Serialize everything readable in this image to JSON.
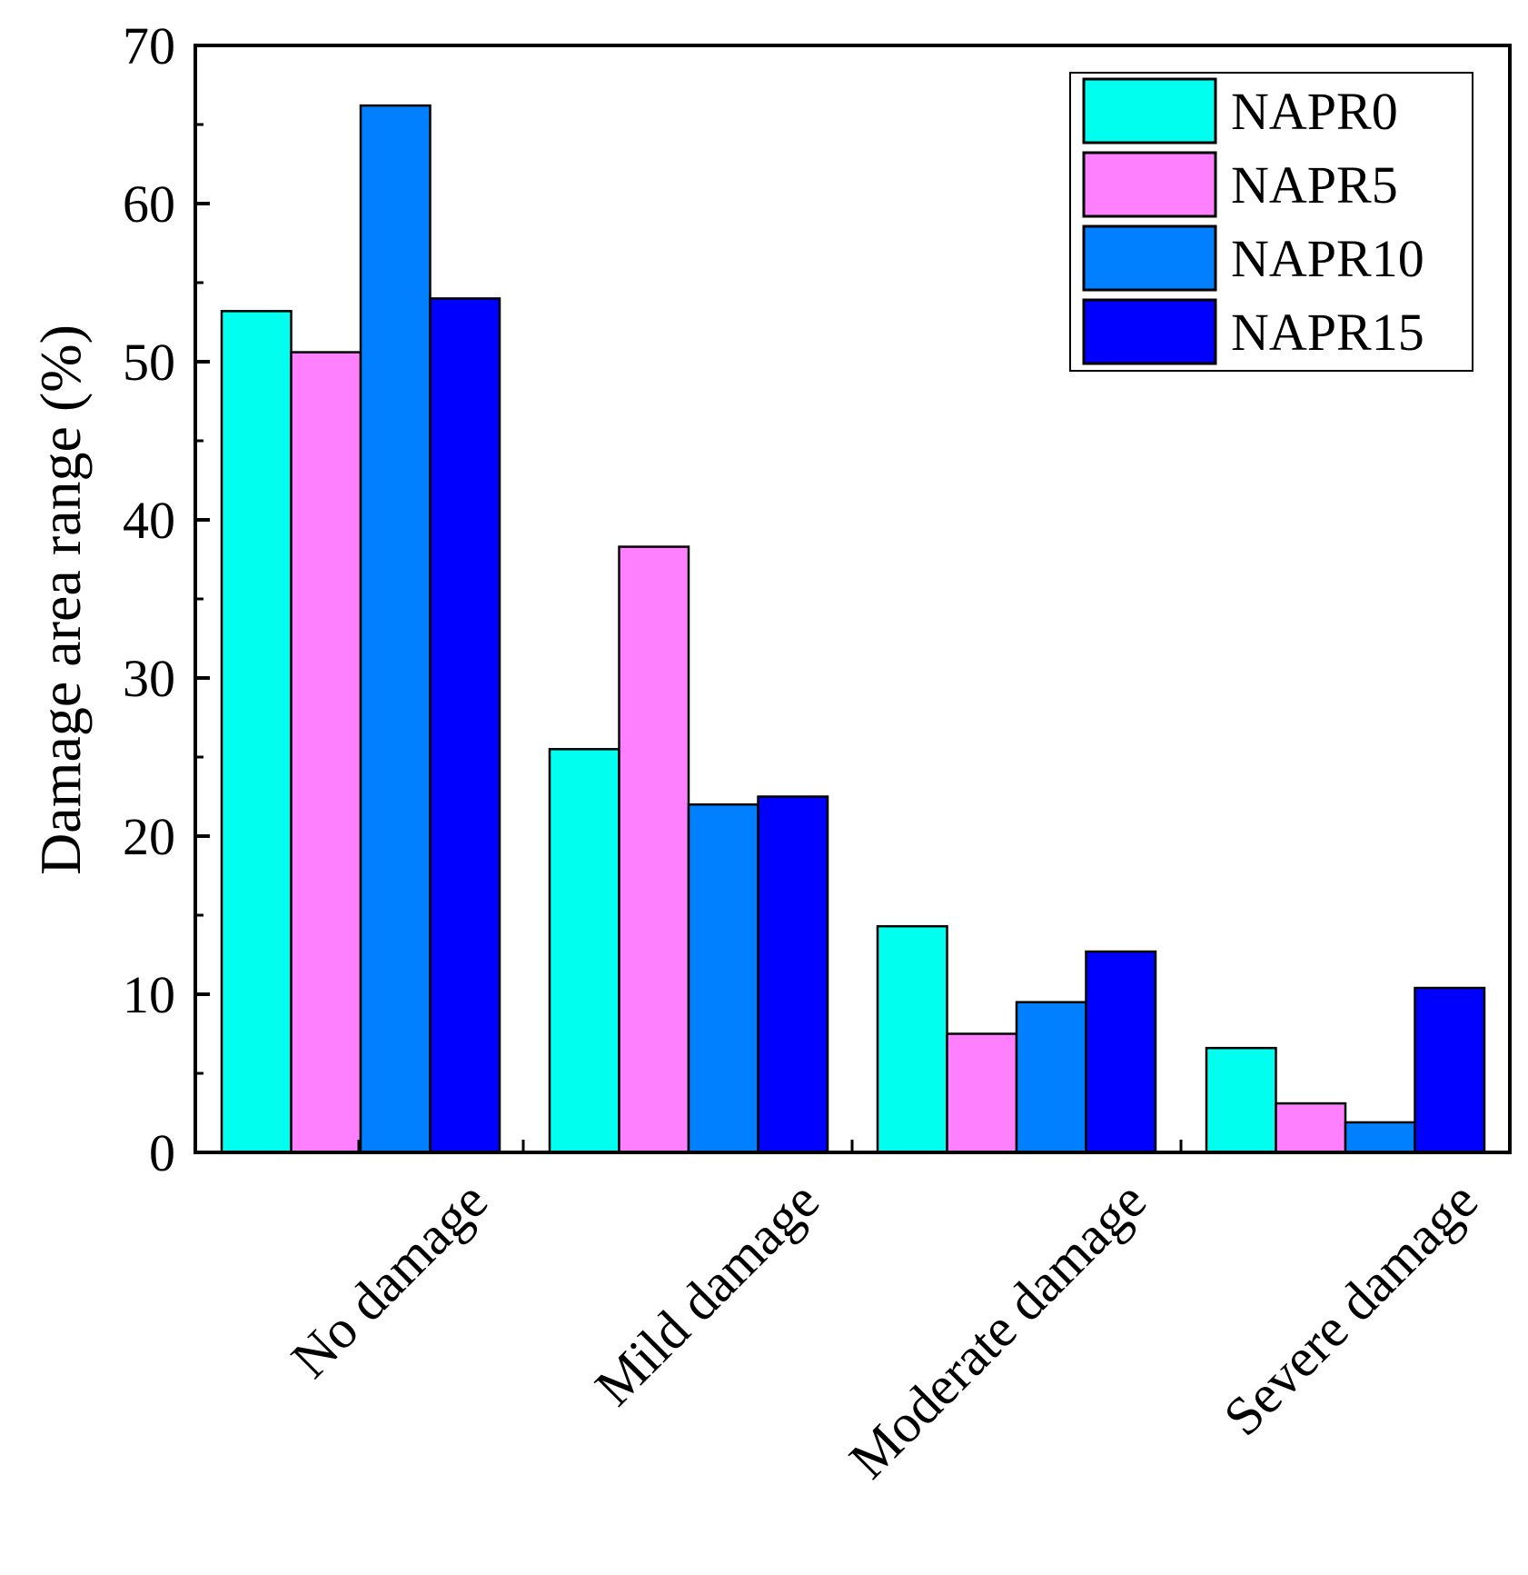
{
  "chart_data": {
    "type": "bar",
    "title": "",
    "xlabel": "",
    "ylabel": "Damage area range (%)",
    "ylim": [
      0,
      70
    ],
    "yticks": [
      0,
      10,
      20,
      30,
      40,
      50,
      60,
      70
    ],
    "yticks_minor_step": 5,
    "categories": [
      "No damage",
      "Mild damage",
      "Moderate damage",
      "Severe damage"
    ],
    "series": [
      {
        "name": "NAPR0",
        "color": "#00FFEE",
        "values": [
          53.2,
          25.5,
          14.3,
          6.6
        ]
      },
      {
        "name": "NAPR5",
        "color": "#FF80FF",
        "values": [
          50.6,
          38.3,
          7.5,
          3.1
        ]
      },
      {
        "name": "NAPR10",
        "color": "#0080FF",
        "values": [
          66.2,
          22.0,
          9.5,
          1.9
        ]
      },
      {
        "name": "NAPR15",
        "color": "#0000FF",
        "values": [
          54.0,
          22.5,
          12.7,
          10.4
        ]
      }
    ],
    "legend": {
      "position": "top-right"
    },
    "grid": false
  }
}
